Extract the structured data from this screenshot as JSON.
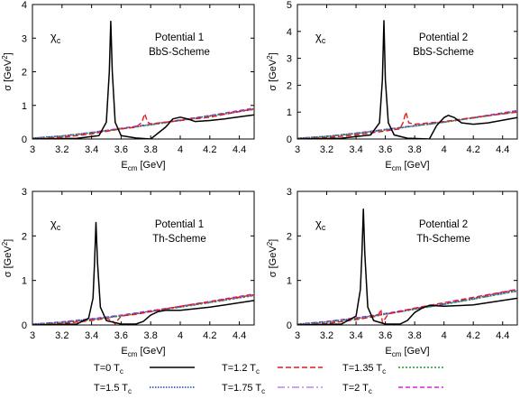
{
  "legend": [
    {
      "label": "T=0 T",
      "sub": "c",
      "color": "#000000",
      "dash": ""
    },
    {
      "label": "T=1.2 T",
      "sub": "c",
      "color": "#e41a1c",
      "dash": "6,3"
    },
    {
      "label": "T=1.35 T",
      "sub": "c",
      "color": "#1a9e2a",
      "dash": "2,2"
    },
    {
      "label": "T=1.5 T",
      "sub": "c",
      "color": "#1f3fbf",
      "dash": "1.5,1.5"
    },
    {
      "label": "T=1.75 T",
      "sub": "c",
      "color": "#b18ae0",
      "dash": "8,3,2,3"
    },
    {
      "label": "T=2 T",
      "sub": "c",
      "color": "#e020e0",
      "dash": "5,3"
    }
  ],
  "chart_data": [
    {
      "type": "line",
      "panel_label": "χc",
      "annotation": [
        "Potential 1",
        "BbS-Scheme"
      ],
      "xlabel": {
        "main": "E",
        "sub": "cm",
        "rest": " [GeV]"
      },
      "ylabel": {
        "main": "σ [GeV",
        "sup": "2",
        "rest": "]"
      },
      "xlim": [
        3,
        4.5
      ],
      "ylim": [
        0,
        4
      ],
      "xticks": [
        "3",
        "3.2",
        "3.4",
        "3.6",
        "3.8",
        "4",
        "4.2",
        "4.4"
      ],
      "yticks": [
        "0",
        "1",
        "2",
        "3",
        "4"
      ],
      "series": [
        {
          "x": [
            3.0,
            3.3,
            3.45,
            3.5,
            3.52,
            3.53,
            3.54,
            3.56,
            3.6,
            3.7,
            3.8,
            3.9,
            3.95,
            4.0,
            4.05,
            4.1,
            4.2,
            4.3,
            4.5
          ],
          "y": [
            0,
            0.02,
            0.1,
            0.5,
            2.0,
            3.5,
            2.0,
            0.5,
            0.1,
            0.03,
            0.0,
            0.35,
            0.6,
            0.65,
            0.6,
            0.52,
            0.55,
            0.6,
            0.72
          ]
        },
        {
          "x": [
            3.0,
            3.2,
            3.4,
            3.6,
            3.7,
            3.74,
            3.76,
            3.78,
            3.8,
            4.0,
            4.2,
            4.5
          ],
          "y": [
            0,
            0.05,
            0.15,
            0.3,
            0.35,
            0.5,
            0.75,
            0.5,
            0.45,
            0.55,
            0.65,
            0.9
          ]
        },
        {
          "x": [
            3.0,
            3.2,
            3.4,
            3.6,
            3.8,
            4.0,
            4.2,
            4.5
          ],
          "y": [
            0.02,
            0.08,
            0.18,
            0.3,
            0.42,
            0.55,
            0.68,
            0.88
          ]
        },
        {
          "x": [
            3.0,
            3.2,
            3.4,
            3.6,
            3.8,
            4.0,
            4.2,
            4.5
          ],
          "y": [
            0.03,
            0.09,
            0.19,
            0.31,
            0.43,
            0.56,
            0.69,
            0.9
          ]
        },
        {
          "x": [
            3.0,
            3.2,
            3.4,
            3.6,
            3.8,
            4.0,
            4.2,
            4.5
          ],
          "y": [
            0.02,
            0.08,
            0.18,
            0.3,
            0.42,
            0.55,
            0.68,
            0.88
          ]
        },
        {
          "x": [
            3.0,
            3.2,
            3.4,
            3.6,
            3.8,
            4.0,
            4.2,
            4.5
          ],
          "y": [
            0.03,
            0.09,
            0.2,
            0.32,
            0.44,
            0.57,
            0.7,
            0.92
          ]
        }
      ]
    },
    {
      "type": "line",
      "panel_label": "χc",
      "annotation": [
        "Potential 2",
        "BbS-Scheme"
      ],
      "xlabel": {
        "main": "E",
        "sub": "cm",
        "rest": " [GeV]"
      },
      "ylabel": {
        "main": "σ [GeV",
        "sup": "2",
        "rest": "]"
      },
      "xlim": [
        3,
        4.5
      ],
      "ylim": [
        0,
        5
      ],
      "xticks": [
        "3",
        "3.2",
        "3.4",
        "3.6",
        "3.8",
        "4",
        "4.2",
        "4.4"
      ],
      "yticks": [
        "0",
        "1",
        "2",
        "3",
        "4",
        "5"
      ],
      "series": [
        {
          "x": [
            3.0,
            3.3,
            3.5,
            3.56,
            3.58,
            3.59,
            3.6,
            3.62,
            3.66,
            3.75,
            3.9,
            3.95,
            4.0,
            4.03,
            4.07,
            4.12,
            4.2,
            4.3,
            4.5
          ],
          "y": [
            0,
            0.03,
            0.15,
            0.6,
            2.2,
            4.4,
            2.2,
            0.6,
            0.15,
            0.03,
            0.0,
            0.5,
            0.8,
            0.88,
            0.8,
            0.6,
            0.55,
            0.6,
            0.8
          ]
        },
        {
          "x": [
            3.0,
            3.2,
            3.4,
            3.6,
            3.7,
            3.72,
            3.74,
            3.76,
            3.8,
            4.0,
            4.2,
            4.5
          ],
          "y": [
            0,
            0.05,
            0.15,
            0.3,
            0.38,
            0.6,
            1.0,
            0.6,
            0.55,
            0.65,
            0.8,
            1.0
          ]
        },
        {
          "x": [
            3.0,
            3.2,
            3.4,
            3.6,
            3.8,
            4.0,
            4.2,
            4.5
          ],
          "y": [
            0.02,
            0.09,
            0.2,
            0.34,
            0.48,
            0.62,
            0.78,
            1.02
          ]
        },
        {
          "x": [
            3.0,
            3.2,
            3.4,
            3.6,
            3.8,
            4.0,
            4.2,
            4.5
          ],
          "y": [
            0.03,
            0.1,
            0.21,
            0.35,
            0.49,
            0.63,
            0.79,
            1.04
          ]
        },
        {
          "x": [
            3.0,
            3.2,
            3.4,
            3.6,
            3.8,
            4.0,
            4.2,
            4.5
          ],
          "y": [
            0.02,
            0.09,
            0.2,
            0.34,
            0.48,
            0.62,
            0.78,
            1.02
          ]
        },
        {
          "x": [
            3.0,
            3.2,
            3.4,
            3.6,
            3.8,
            4.0,
            4.2,
            4.5
          ],
          "y": [
            0.03,
            0.1,
            0.22,
            0.36,
            0.5,
            0.64,
            0.8,
            1.06
          ]
        }
      ]
    },
    {
      "type": "line",
      "panel_label": "χc",
      "annotation": [
        "Potential 1",
        "Th-Scheme"
      ],
      "xlabel": {
        "main": "E",
        "sub": "cm",
        "rest": " [GeV]"
      },
      "ylabel": {
        "main": "σ [GeV",
        "sup": "2",
        "rest": "]"
      },
      "xlim": [
        3,
        4.5
      ],
      "ylim": [
        0,
        3
      ],
      "xticks": [
        "3",
        "3.2",
        "3.4",
        "3.6",
        "3.8",
        "4",
        "4.2",
        "4.4"
      ],
      "yticks": [
        "0",
        "1",
        "2",
        "3"
      ],
      "series": [
        {
          "x": [
            3.0,
            3.3,
            3.38,
            3.41,
            3.42,
            3.43,
            3.44,
            3.46,
            3.5,
            3.6,
            3.7,
            3.75,
            3.8,
            3.85,
            3.9,
            4.0,
            4.2,
            4.5
          ],
          "y": [
            0,
            0.02,
            0.15,
            0.6,
            1.4,
            2.3,
            1.4,
            0.4,
            0.1,
            0.02,
            0.02,
            0.08,
            0.22,
            0.3,
            0.33,
            0.33,
            0.4,
            0.55
          ]
        },
        {
          "x": [
            3.0,
            3.2,
            3.4,
            3.5,
            3.54,
            3.56,
            3.58,
            3.6,
            3.7,
            3.8,
            4.0,
            4.2,
            4.5
          ],
          "y": [
            0,
            0.03,
            0.1,
            0.15,
            0.1,
            0.02,
            0.12,
            0.2,
            0.24,
            0.3,
            0.42,
            0.52,
            0.68
          ]
        },
        {
          "x": [
            3.0,
            3.2,
            3.4,
            3.6,
            3.8,
            4.0,
            4.2,
            4.5
          ],
          "y": [
            0.01,
            0.05,
            0.12,
            0.2,
            0.3,
            0.4,
            0.5,
            0.66
          ]
        },
        {
          "x": [
            3.0,
            3.2,
            3.4,
            3.6,
            3.8,
            4.0,
            4.2,
            4.5
          ],
          "y": [
            0.02,
            0.06,
            0.13,
            0.21,
            0.31,
            0.41,
            0.52,
            0.68
          ]
        },
        {
          "x": [
            3.0,
            3.2,
            3.4,
            3.6,
            3.8,
            4.0,
            4.2,
            4.5
          ],
          "y": [
            0.01,
            0.05,
            0.12,
            0.2,
            0.3,
            0.4,
            0.5,
            0.66
          ]
        },
        {
          "x": [
            3.0,
            3.2,
            3.4,
            3.6,
            3.8,
            4.0,
            4.2,
            4.5
          ],
          "y": [
            0.02,
            0.07,
            0.14,
            0.22,
            0.32,
            0.42,
            0.53,
            0.7
          ]
        }
      ]
    },
    {
      "type": "line",
      "panel_label": "χc",
      "annotation": [
        "Potential 2",
        "Th-Scheme"
      ],
      "xlabel": {
        "main": "E",
        "sub": "cm",
        "rest": " [GeV]"
      },
      "ylabel": {
        "main": "σ [GeV",
        "sup": "2",
        "rest": "]"
      },
      "xlim": [
        3,
        4.5
      ],
      "ylim": [
        0,
        3
      ],
      "xticks": [
        "3",
        "3.2",
        "3.4",
        "3.6",
        "3.8",
        "4",
        "4.2",
        "4.4"
      ],
      "yticks": [
        "0",
        "1",
        "2",
        "3"
      ],
      "series": [
        {
          "x": [
            3.0,
            3.3,
            3.4,
            3.43,
            3.44,
            3.45,
            3.46,
            3.48,
            3.52,
            3.6,
            3.7,
            3.75,
            3.8,
            3.85,
            3.9,
            4.0,
            4.2,
            4.5
          ],
          "y": [
            0,
            0.02,
            0.2,
            0.8,
            1.6,
            2.6,
            1.6,
            0.4,
            0.1,
            0.02,
            0.02,
            0.1,
            0.28,
            0.38,
            0.44,
            0.42,
            0.45,
            0.6
          ]
        },
        {
          "x": [
            3.0,
            3.2,
            3.4,
            3.55,
            3.57,
            3.58,
            3.6,
            3.62,
            3.7,
            3.8,
            4.0,
            4.2,
            4.5
          ],
          "y": [
            0,
            0.03,
            0.12,
            0.2,
            0.35,
            0.05,
            0.15,
            0.25,
            0.3,
            0.38,
            0.5,
            0.62,
            0.8
          ]
        },
        {
          "x": [
            3.0,
            3.2,
            3.4,
            3.6,
            3.8,
            4.0,
            4.2,
            4.5
          ],
          "y": [
            0.01,
            0.06,
            0.14,
            0.24,
            0.35,
            0.46,
            0.58,
            0.76
          ]
        },
        {
          "x": [
            3.0,
            3.2,
            3.4,
            3.6,
            3.8,
            4.0,
            4.2,
            4.5
          ],
          "y": [
            0.02,
            0.07,
            0.15,
            0.25,
            0.36,
            0.47,
            0.59,
            0.78
          ]
        },
        {
          "x": [
            3.0,
            3.2,
            3.4,
            3.6,
            3.8,
            4.0,
            4.2,
            4.5
          ],
          "y": [
            0.01,
            0.06,
            0.14,
            0.24,
            0.35,
            0.46,
            0.58,
            0.76
          ]
        },
        {
          "x": [
            3.0,
            3.2,
            3.4,
            3.6,
            3.8,
            4.0,
            4.2,
            4.5
          ],
          "y": [
            0.02,
            0.08,
            0.16,
            0.26,
            0.37,
            0.48,
            0.6,
            0.8
          ]
        }
      ]
    }
  ]
}
